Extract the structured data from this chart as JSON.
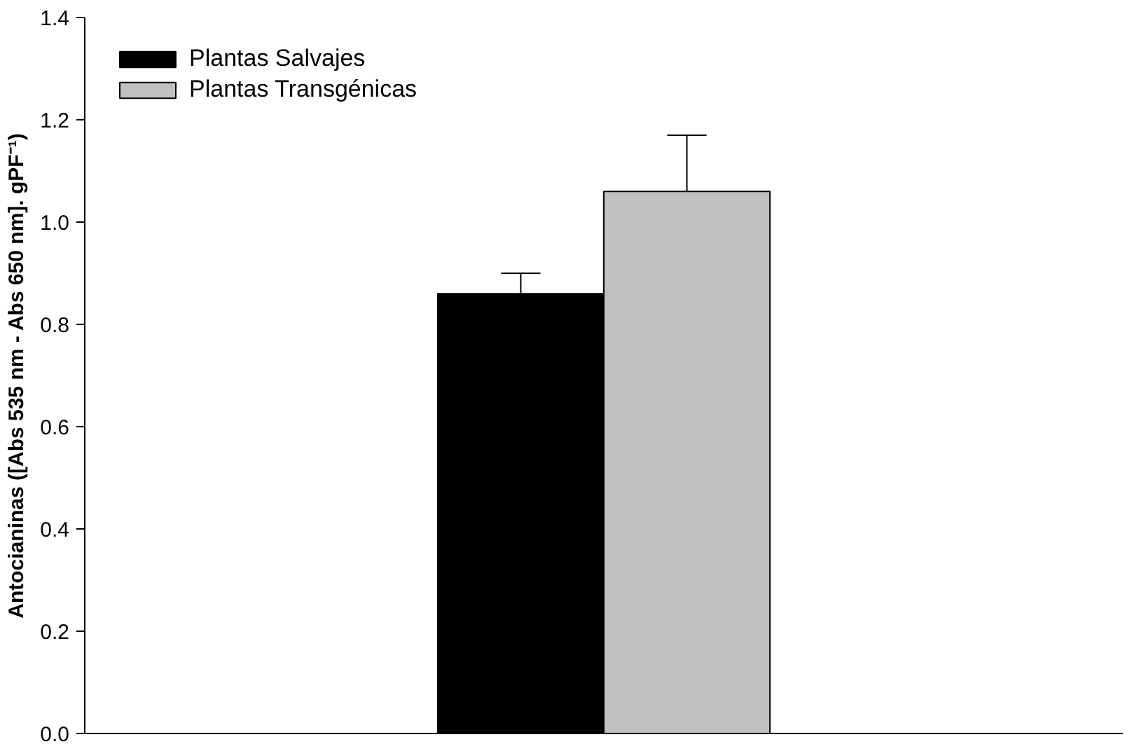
{
  "chart_data": {
    "type": "bar",
    "ylabel": "Antocianinas ([Abs 535 nm - Abs 650 nm]. gPF⁻¹)",
    "categories": [
      null
    ],
    "series": [
      {
        "name": "Plantas Salvajes",
        "color": "#000000",
        "values": [
          0.86
        ],
        "errors": [
          [
            0.86,
            0.9
          ]
        ]
      },
      {
        "name": "Plantas Transgénicas",
        "color": "#c0c0c0",
        "values": [
          1.06
        ],
        "errors": [
          [
            1.06,
            1.17
          ]
        ]
      }
    ],
    "ylim": [
      0,
      1.4
    ],
    "yticks": [
      {
        "value": 0,
        "label": "0.0"
      },
      {
        "value": 0.2,
        "label": "0.2"
      },
      {
        "value": 0.4,
        "label": "0.4"
      },
      {
        "value": 0.6,
        "label": "0.6"
      },
      {
        "value": 0.8,
        "label": "0.8"
      },
      {
        "value": 1.0,
        "label": "1.0"
      },
      {
        "value": 1.2,
        "label": "1.2"
      },
      {
        "value": 1.4,
        "label": "1.4"
      }
    ],
    "legend": "top left",
    "grid": false
  }
}
